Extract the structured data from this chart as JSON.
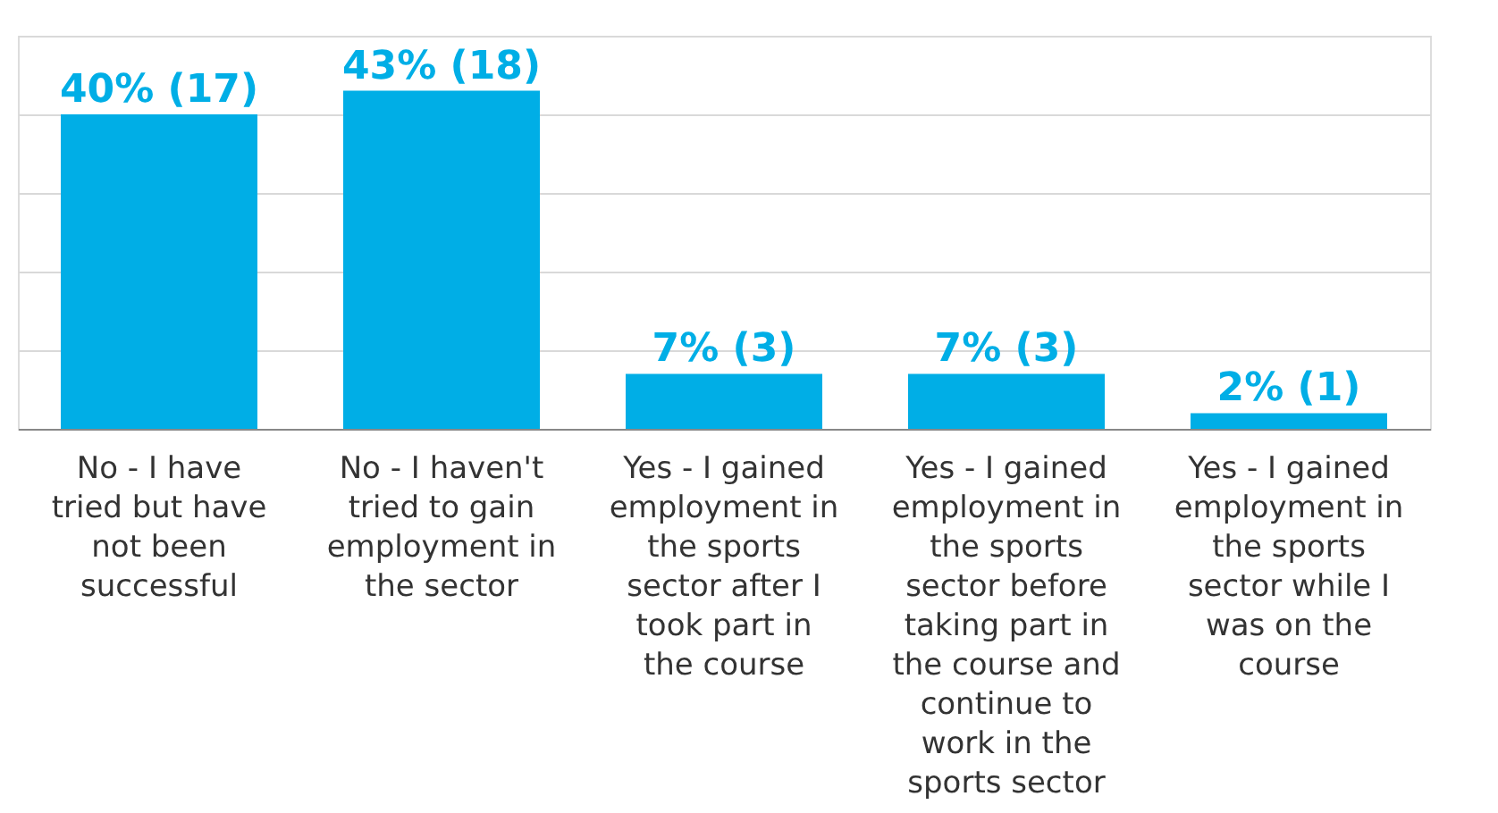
{
  "chart_data": {
    "type": "bar",
    "categories": [
      "No - I have tried but have not been successful",
      "No - I haven't tried to gain employment in the sector",
      "Yes - I gained employment in the sports sector after I took part in the course",
      "Yes - I gained employment in the sports sector before taking part in the course and continue to work in the sports sector",
      "Yes - I gained employment in the sports sector while I was on the course"
    ],
    "values": [
      40,
      43,
      7,
      7,
      2
    ],
    "value_labels": [
      "40% (17)",
      "43% (18)",
      "7% (3)",
      "7% (3)",
      "2% (1)"
    ],
    "color": "#00aee6",
    "ylim": [
      0,
      50
    ],
    "yticks": [
      {
        "value": 0,
        "label": null
      },
      {
        "value": 10,
        "label": null
      },
      {
        "value": 20,
        "label": null
      },
      {
        "value": 30,
        "label": null
      },
      {
        "value": 40,
        "label": null
      },
      {
        "value": 50,
        "label": null
      }
    ],
    "grid": "y",
    "tick_labels": "x"
  }
}
